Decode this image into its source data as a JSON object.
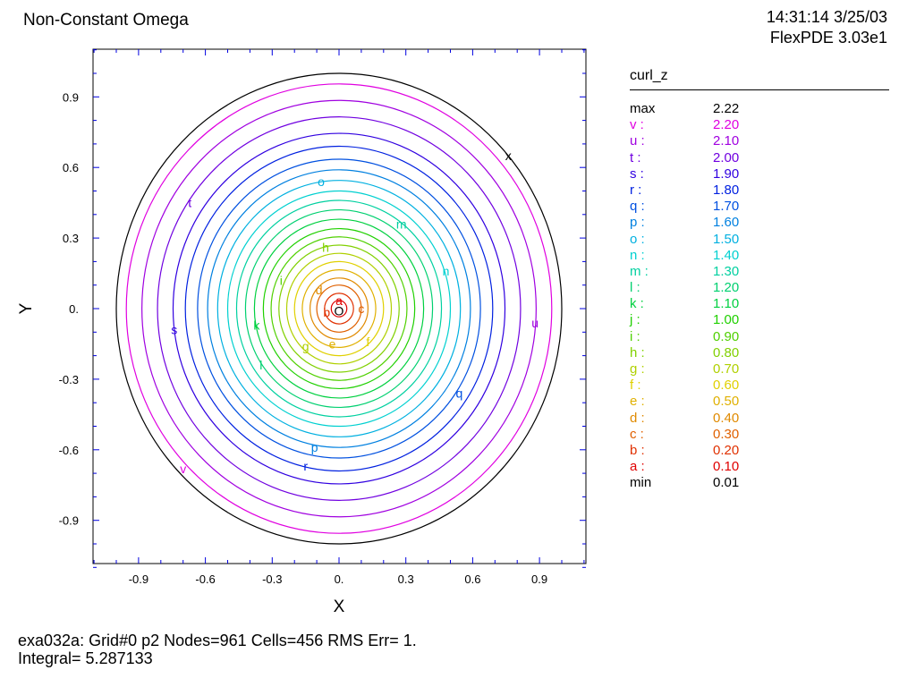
{
  "header": {
    "title": "Non-Constant Omega",
    "time": "14:31:14 3/25/03",
    "software": "FlexPDE 3.03e1"
  },
  "footer": {
    "line1": "exa032a:  Grid#0  p2  Nodes=961 Cells=456 RMS Err= 1.",
    "line2": "Integral=  5.287133"
  },
  "chart_data": {
    "type": "contour",
    "title": "Non-Constant Omega",
    "variable": "curl_z",
    "xlabel": "X",
    "ylabel": "Y",
    "xlim": [
      -1.1,
      1.1
    ],
    "ylim": [
      -1.1,
      1.1
    ],
    "xticks": [
      "-0.9",
      "-0.6",
      "-0.3",
      "0.",
      "0.3",
      "0.6",
      "0.9"
    ],
    "yticks": [
      "0.9",
      "0.6",
      "0.3",
      "0.",
      "-0.3",
      "-0.6",
      "-0.9"
    ],
    "xtick_values": [
      -0.9,
      -0.6,
      -0.3,
      0,
      0.3,
      0.6,
      0.9
    ],
    "ytick_values": [
      0.9,
      0.6,
      0.3,
      0,
      -0.3,
      -0.6,
      -0.9
    ],
    "domain_boundary": {
      "shape": "circle",
      "radius": 1.0
    },
    "max": {
      "label": "max",
      "value": "2.22"
    },
    "min": {
      "label": "min",
      "value": "0.01"
    },
    "levels": [
      {
        "key": "v",
        "value": "2.20",
        "color": "#e000e0",
        "r": 0.955
      },
      {
        "key": "u",
        "value": "2.10",
        "color": "#a000e0",
        "r": 0.885
      },
      {
        "key": "t",
        "value": "2.00",
        "color": "#7000e0",
        "r": 0.815
      },
      {
        "key": "s",
        "value": "1.90",
        "color": "#3000e0",
        "r": 0.745
      },
      {
        "key": "r",
        "value": "1.80",
        "color": "#0020e0",
        "r": 0.69
      },
      {
        "key": "q",
        "value": "1.70",
        "color": "#0050e0",
        "r": 0.635
      },
      {
        "key": "p",
        "value": "1.60",
        "color": "#0080e0",
        "r": 0.59
      },
      {
        "key": "o",
        "value": "1.50",
        "color": "#00b0e0",
        "r": 0.545
      },
      {
        "key": "n",
        "value": "1.40",
        "color": "#00d0d0",
        "r": 0.5
      },
      {
        "key": "m",
        "value": "1.30",
        "color": "#00d0a0",
        "r": 0.46
      },
      {
        "key": "l",
        "value": "1.20",
        "color": "#00d070",
        "r": 0.42
      },
      {
        "key": "k",
        "value": "1.10",
        "color": "#00d040",
        "r": 0.38
      },
      {
        "key": "j",
        "value": "1.00",
        "color": "#20d000",
        "r": 0.34
      },
      {
        "key": "i",
        "value": "0.90",
        "color": "#50d000",
        "r": 0.305
      },
      {
        "key": "h",
        "value": "0.80",
        "color": "#80d000",
        "r": 0.27
      },
      {
        "key": "g",
        "value": "0.70",
        "color": "#b0d000",
        "r": 0.235
      },
      {
        "key": "f",
        "value": "0.60",
        "color": "#e0d000",
        "r": 0.2
      },
      {
        "key": "e",
        "value": "0.50",
        "color": "#e0b000",
        "r": 0.165
      },
      {
        "key": "d",
        "value": "0.40",
        "color": "#e08a00",
        "r": 0.13
      },
      {
        "key": "c",
        "value": "0.30",
        "color": "#e06000",
        "r": 0.1
      },
      {
        "key": "b",
        "value": "0.20",
        "color": "#e03000",
        "r": 0.065
      },
      {
        "key": "a",
        "value": "0.10",
        "color": "#e00000",
        "r": 0.035
      }
    ],
    "labels": [
      {
        "t": "a",
        "x": 0.0,
        "y": 0.035
      },
      {
        "t": "b",
        "x": -0.055,
        "y": -0.015
      },
      {
        "t": "c",
        "x": 0.1,
        "y": 0.0
      },
      {
        "t": "d",
        "x": -0.09,
        "y": 0.08
      },
      {
        "t": "e",
        "x": -0.03,
        "y": -0.15
      },
      {
        "t": "f",
        "x": 0.13,
        "y": -0.14
      },
      {
        "t": "g",
        "x": -0.15,
        "y": -0.16
      },
      {
        "t": "h",
        "x": -0.06,
        "y": 0.26
      },
      {
        "t": "i",
        "x": -0.26,
        "y": 0.12
      },
      {
        "t": "k",
        "x": -0.37,
        "y": -0.07
      },
      {
        "t": "l",
        "x": -0.35,
        "y": -0.24
      },
      {
        "t": "m",
        "x": 0.28,
        "y": 0.36
      },
      {
        "t": "n",
        "x": 0.48,
        "y": 0.16
      },
      {
        "t": "o",
        "x": -0.08,
        "y": 0.54
      },
      {
        "t": "p",
        "x": -0.11,
        "y": -0.59
      },
      {
        "t": "q",
        "x": 0.54,
        "y": -0.36
      },
      {
        "t": "r",
        "x": -0.15,
        "y": -0.67
      },
      {
        "t": "s",
        "x": -0.74,
        "y": -0.09
      },
      {
        "t": "t",
        "x": -0.67,
        "y": 0.45
      },
      {
        "t": "u",
        "x": 0.88,
        "y": -0.06
      },
      {
        "t": "v",
        "x": -0.7,
        "y": -0.68
      },
      {
        "t": "x",
        "x": 0.76,
        "y": 0.65,
        "color": "#000000"
      },
      {
        "t": "O",
        "x": 0.0,
        "y": -0.01,
        "color": "#000000"
      }
    ]
  }
}
